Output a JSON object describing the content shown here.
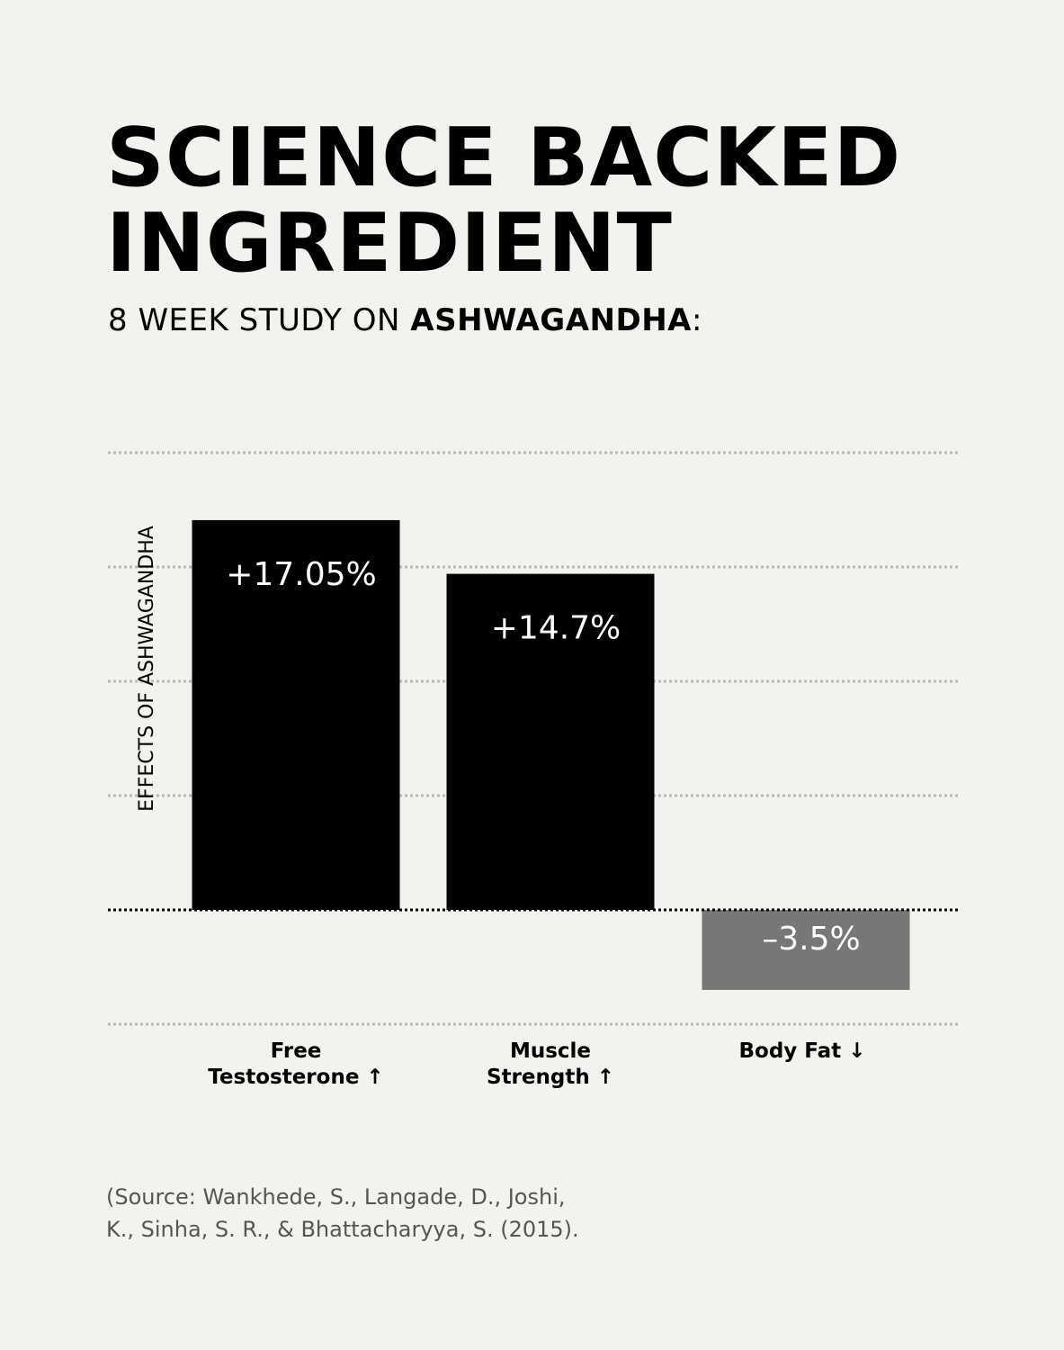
{
  "header": {
    "title_line1": "SCIENCE BACKED",
    "title_line2": "INGREDIENT",
    "subtitle_prefix": "8 WEEK STUDY ON ",
    "subtitle_bold": "ASHWAGANDHA",
    "subtitle_suffix": ":"
  },
  "chart_data": {
    "type": "bar",
    "ylabel": "EFFECTS OF ASHWAGANDHA",
    "ylim": [
      -5,
      20
    ],
    "grid": true,
    "categories": [
      {
        "line1": "Free",
        "line2": "Testosterone",
        "arrow": "↑"
      },
      {
        "line1": "Muscle",
        "line2": "Strength",
        "arrow": "↑"
      },
      {
        "line1": "Body Fat",
        "line2": "",
        "arrow": "↓"
      }
    ],
    "values": [
      17.05,
      14.7,
      -3.5
    ],
    "data_labels": [
      "+17.05%",
      "+14.7%",
      "–3.5%"
    ],
    "colors": {
      "positive": "#000000",
      "negative": "#777777",
      "grid": "#b8b8b8",
      "baseline": "#000000",
      "label_text": "#ffffff"
    }
  },
  "footer": {
    "source_line1": "(Source: Wankhede, S., Langade, D., Joshi,",
    "source_line2": "K., Sinha, S. R., & Bhattacharyya, S. (2015)."
  }
}
